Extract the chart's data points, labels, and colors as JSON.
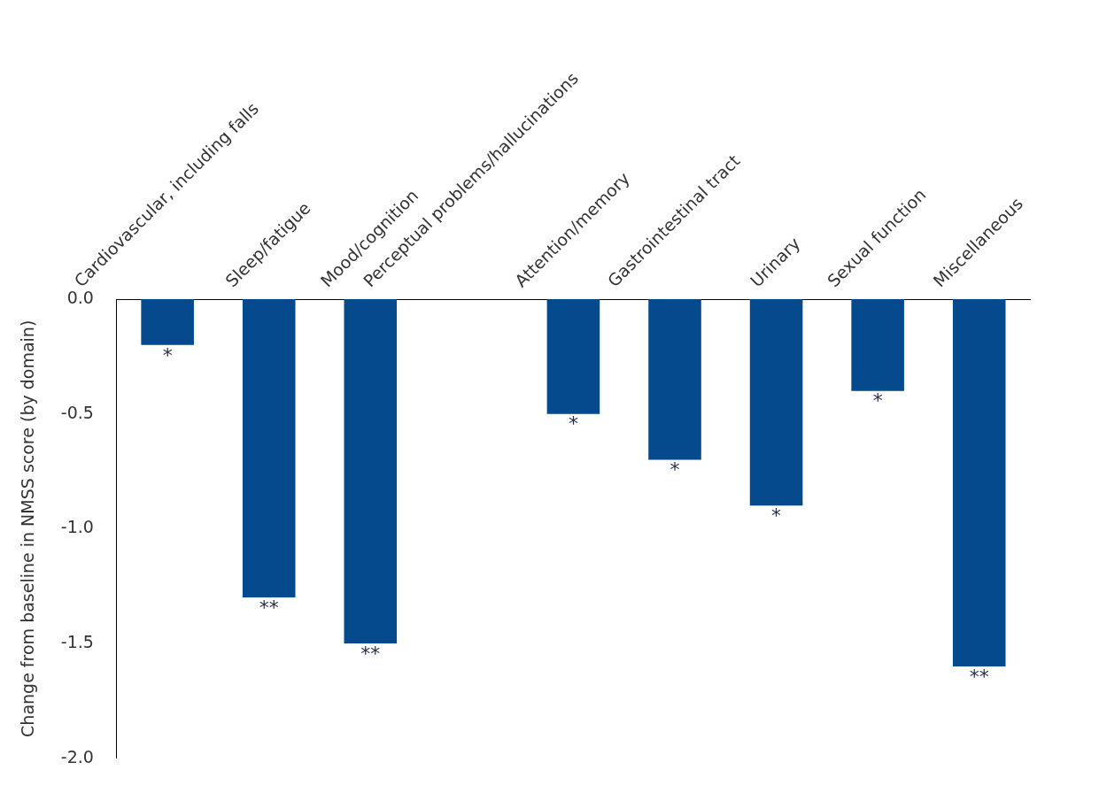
{
  "chart_data": {
    "type": "bar",
    "ylabel": "Change from baseline in NMSS score (by domain)",
    "categories": [
      "Cardiovascular, including falls",
      "Sleep/fatigue",
      "Mood/cognition",
      "Perceptual problems/hallucinations",
      "Attention/memory",
      "Gastrointestinal tract",
      "Urinary",
      "Sexual function",
      "Miscellaneous"
    ],
    "values": [
      -0.2,
      -1.3,
      -1.5,
      null,
      -0.5,
      -0.7,
      -0.9,
      -0.4,
      -1.6
    ],
    "color": "#044a8c",
    "ylim": [
      -2.0,
      0.0
    ],
    "yticks": [
      {
        "value": 0,
        "label": "0.0"
      },
      -0.5,
      {
        "value": -1,
        "label": "-1.0"
      },
      -1.5,
      {
        "value": -2,
        "label": "-2.0"
      }
    ],
    "grid": false,
    "legend": false,
    "annotations": [
      {
        "text": "*",
        "x": "Cardiovascular, including falls",
        "y": -0.2
      },
      {
        "text": "**",
        "x": "Sleep/fatigue",
        "y": -1.3
      },
      {
        "text": "**",
        "x": "Mood/cognition",
        "y": -1.5
      },
      {
        "text": "*",
        "x": "Attention/memory",
        "y": -0.5
      },
      {
        "text": "*",
        "x": "Gastrointestinal tract",
        "y": -0.7
      },
      {
        "text": "*",
        "x": "Urinary",
        "y": -0.9
      },
      {
        "text": "*",
        "x": "Sexual function",
        "y": -0.4
      },
      {
        "text": "**",
        "x": "Miscellaneous",
        "y": -1.6
      }
    ]
  }
}
